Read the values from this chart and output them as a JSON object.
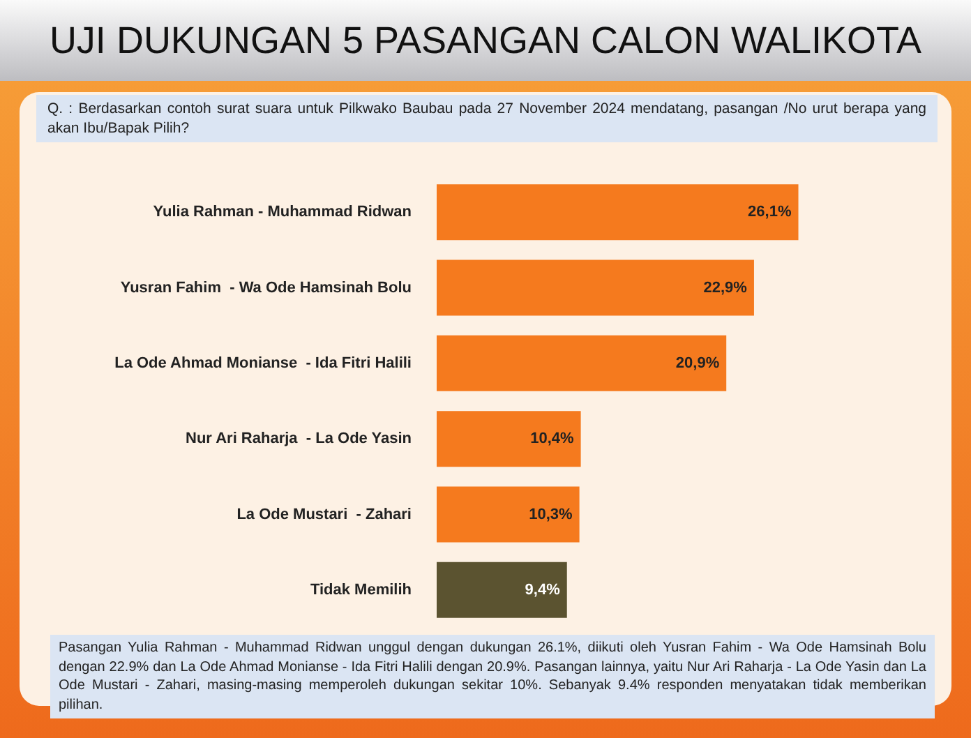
{
  "chart_data": {
    "type": "bar",
    "orientation": "horizontal",
    "title": "UJI DUKUNGAN 5 PASANGAN CALON WALIKOTA",
    "subtitle": "Q. : Berdasarkan contoh surat suara untuk Pilkwako Baubau pada 27 November 2024 mendatang, pasangan /No urut berapa yang akan Ibu/Bapak Pilih?",
    "categories": [
      "Yulia Rahman - Muhammad Ridwan",
      "Yusran Fahim  - Wa Ode Hamsinah Bolu",
      "La Ode Ahmad Monianse  - Ida Fitri Halili",
      "Nur Ari Raharja  - La Ode Yasin",
      "La Ode Mustari  - Zahari",
      "Tidak Memilih"
    ],
    "values": [
      26.1,
      22.9,
      20.9,
      10.4,
      10.3,
      9.4
    ],
    "value_labels": [
      "26,1%",
      "22,9%",
      "20,9%",
      "10,4%",
      "10,3%",
      "9,4%"
    ],
    "colors": [
      "#f57a1e",
      "#f57a1e",
      "#f57a1e",
      "#f57a1e",
      "#f57a1e",
      "#5b5330"
    ],
    "annotations": [
      "Pasangan Yulia Rahman - Muhammad Ridwan unggul dengan dukungan 26.1%, diikuti oleh Yusran Fahim - Wa Ode Hamsinah Bolu dengan 22.9% dan La Ode Ahmad Monianse - Ida Fitri Halili dengan 20.9%. Pasangan lainnya, yaitu Nur Ari Raharja - La Ode Yasin dan La Ode Mustari - Zahari, masing-masing memperoleh dukungan sekitar 10%. Sebanyak 9.4% responden menyatakan tidak memberikan pilihan."
    ]
  }
}
